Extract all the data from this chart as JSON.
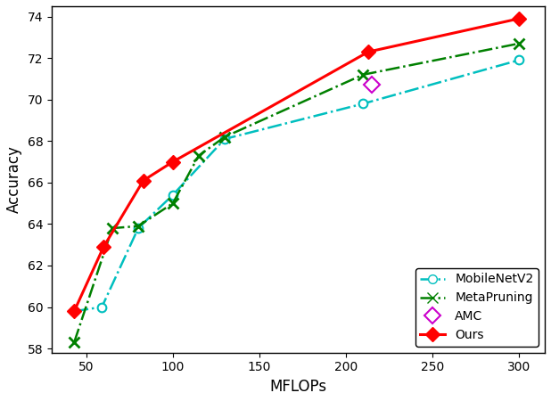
{
  "mobilenetv2": {
    "x": [
      43,
      59,
      80,
      100,
      130,
      210,
      300
    ],
    "y": [
      59.8,
      60.0,
      63.8,
      65.4,
      68.1,
      69.8,
      71.9
    ],
    "color": "#00BFBF",
    "linestyle": "-.",
    "marker": "o",
    "label": "MobileNetV2",
    "linewidth": 1.8,
    "markersize": 7
  },
  "metapruning": {
    "x": [
      43,
      65,
      80,
      100,
      115,
      130,
      210,
      300
    ],
    "y": [
      58.3,
      63.8,
      63.9,
      65.0,
      67.3,
      68.2,
      71.2,
      72.7
    ],
    "color": "#008000",
    "linestyle": "-.",
    "marker": "x",
    "label": "MetaPruning",
    "linewidth": 1.8,
    "markersize": 9
  },
  "amc": {
    "x": [
      215
    ],
    "y": [
      70.7
    ],
    "color": "#CC00CC",
    "label": "AMC",
    "markersize": 9
  },
  "ours": {
    "x": [
      43,
      60,
      83,
      100,
      213,
      300
    ],
    "y": [
      59.8,
      62.9,
      66.1,
      67.0,
      72.3,
      73.9
    ],
    "color": "#FF0000",
    "linestyle": "-",
    "marker": "D",
    "label": "Ours",
    "linewidth": 2.2,
    "markersize": 8
  },
  "xlabel": "MFLOPs",
  "ylabel": "Accuracy",
  "xlim": [
    30,
    315
  ],
  "ylim": [
    57.8,
    74.5
  ],
  "yticks": [
    58,
    60,
    62,
    64,
    66,
    68,
    70,
    72,
    74
  ],
  "xticks": [
    50,
    100,
    150,
    200,
    250,
    300
  ],
  "legend_loc": "lower right",
  "background_color": "#ffffff"
}
